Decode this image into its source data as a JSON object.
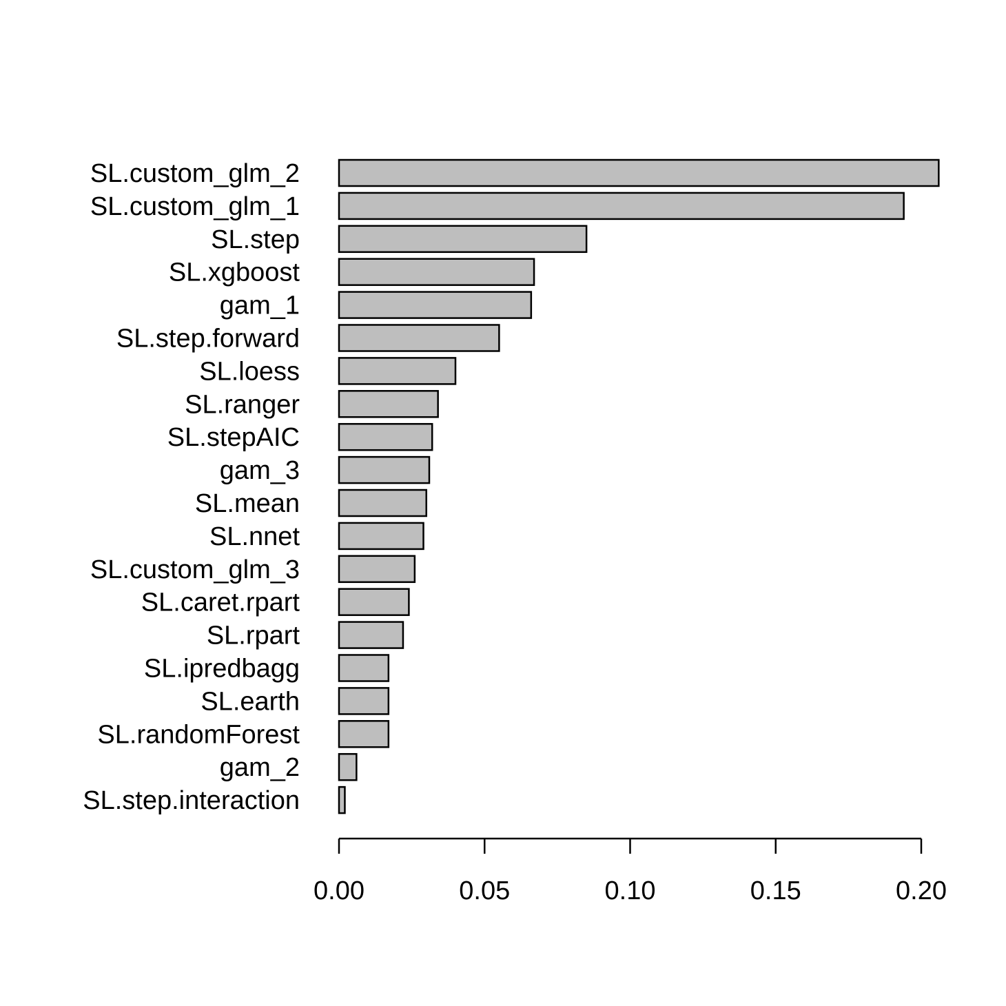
{
  "chart_data": {
    "type": "bar",
    "orientation": "horizontal",
    "categories": [
      "SL.custom_glm_2",
      "SL.custom_glm_1",
      "SL.step",
      "SL.xgboost",
      "gam_1",
      "SL.step.forward",
      "SL.loess",
      "SL.ranger",
      "SL.stepAIC",
      "gam_3",
      "SL.mean",
      "SL.nnet",
      "SL.custom_glm_3",
      "SL.caret.rpart",
      "SL.rpart",
      "SL.ipredbagg",
      "SL.earth",
      "SL.randomForest",
      "gam_2",
      "SL.step.interaction"
    ],
    "values": [
      0.206,
      0.194,
      0.085,
      0.067,
      0.066,
      0.055,
      0.04,
      0.034,
      0.032,
      0.031,
      0.03,
      0.029,
      0.026,
      0.024,
      0.022,
      0.017,
      0.017,
      0.017,
      0.006,
      0.002
    ],
    "xticks": [
      0.0,
      0.05,
      0.1,
      0.15,
      0.2
    ],
    "xtick_labels": [
      "0.00",
      "0.05",
      "0.10",
      "0.15",
      "0.20"
    ],
    "xlim": [
      0,
      0.2
    ],
    "title": "",
    "xlabel": "",
    "ylabel": "",
    "grid": false,
    "bar_color": "#bebebe",
    "edge_color": "#000000"
  }
}
